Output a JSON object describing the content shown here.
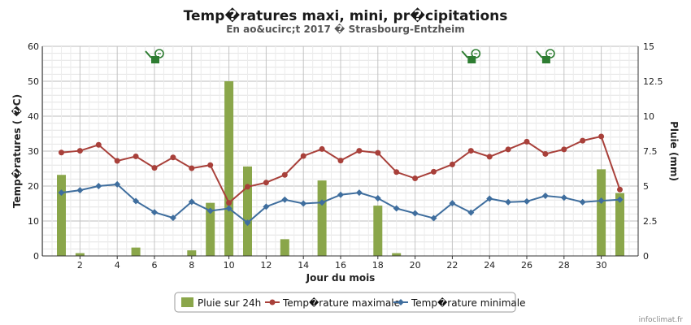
{
  "chart_data": {
    "type": "bar+line",
    "title": "Temp�ratures maxi, mini, pr�cipitations",
    "subtitle": "En ao&ucirc;t 2017 � Strasbourg-Entzheim",
    "xlabel": "Jour du mois",
    "ylabel_left": "Temp�ratures ( �C)",
    "ylabel_right": "Pluie (mm)",
    "x": [
      1,
      2,
      3,
      4,
      5,
      6,
      7,
      8,
      9,
      10,
      11,
      12,
      13,
      14,
      15,
      16,
      17,
      18,
      19,
      20,
      21,
      22,
      23,
      24,
      25,
      26,
      27,
      28,
      29,
      30,
      31
    ],
    "x_ticks": [
      2,
      4,
      6,
      8,
      10,
      12,
      14,
      16,
      18,
      20,
      22,
      24,
      26,
      28,
      30
    ],
    "ylim_left": [
      0,
      60
    ],
    "y_ticks_left": [
      0,
      10,
      20,
      30,
      40,
      50,
      60
    ],
    "ylim_right": [
      0,
      15
    ],
    "y_ticks_right": [
      "0",
      "2.5",
      "5",
      "7.5",
      "10",
      "12.5",
      "15"
    ],
    "grid": true,
    "legend_position": "bottom-center",
    "series": [
      {
        "name": "Pluie sur 24h",
        "type": "bar",
        "axis": "right",
        "color": "#8aa64a",
        "values": [
          5.8,
          0.2,
          0,
          0,
          0.6,
          0,
          0,
          0.4,
          3.8,
          12.5,
          6.4,
          0,
          1.2,
          0,
          5.4,
          0,
          0,
          3.6,
          0.2,
          0,
          0,
          0,
          0,
          0,
          0,
          0,
          0,
          0,
          0,
          6.2,
          4.5
        ]
      },
      {
        "name": "Temp�rature maximale",
        "type": "line",
        "axis": "left",
        "color": "#a8403a",
        "values": [
          29.6,
          30.1,
          31.8,
          27.2,
          28.5,
          25.2,
          28.2,
          25.1,
          26.0,
          15.2,
          19.8,
          21.0,
          23.2,
          28.6,
          30.6,
          27.3,
          30.1,
          29.5,
          24.0,
          22.2,
          24.1,
          26.2,
          30.1,
          28.4,
          30.5,
          32.7,
          29.2,
          30.5,
          33.0,
          34.2,
          19.0
        ]
      },
      {
        "name": "Temp�rature minimale",
        "type": "line",
        "axis": "left",
        "color": "#3f6e9e",
        "values": [
          18.1,
          18.8,
          20.0,
          20.5,
          15.7,
          12.5,
          10.9,
          15.5,
          12.9,
          13.6,
          9.5,
          14.1,
          16.1,
          15.0,
          15.3,
          17.5,
          18.1,
          16.5,
          13.6,
          12.2,
          10.8,
          15.1,
          12.4,
          16.4,
          15.4,
          15.6,
          17.2,
          16.7,
          15.4,
          15.8,
          16.1
        ]
      }
    ],
    "icons": [
      {
        "name": "watering-can-icon",
        "day": 6
      },
      {
        "name": "watering-can-icon",
        "day": 23
      },
      {
        "name": "watering-can-icon",
        "day": 27
      }
    ],
    "credit": "infoclimat.fr"
  }
}
